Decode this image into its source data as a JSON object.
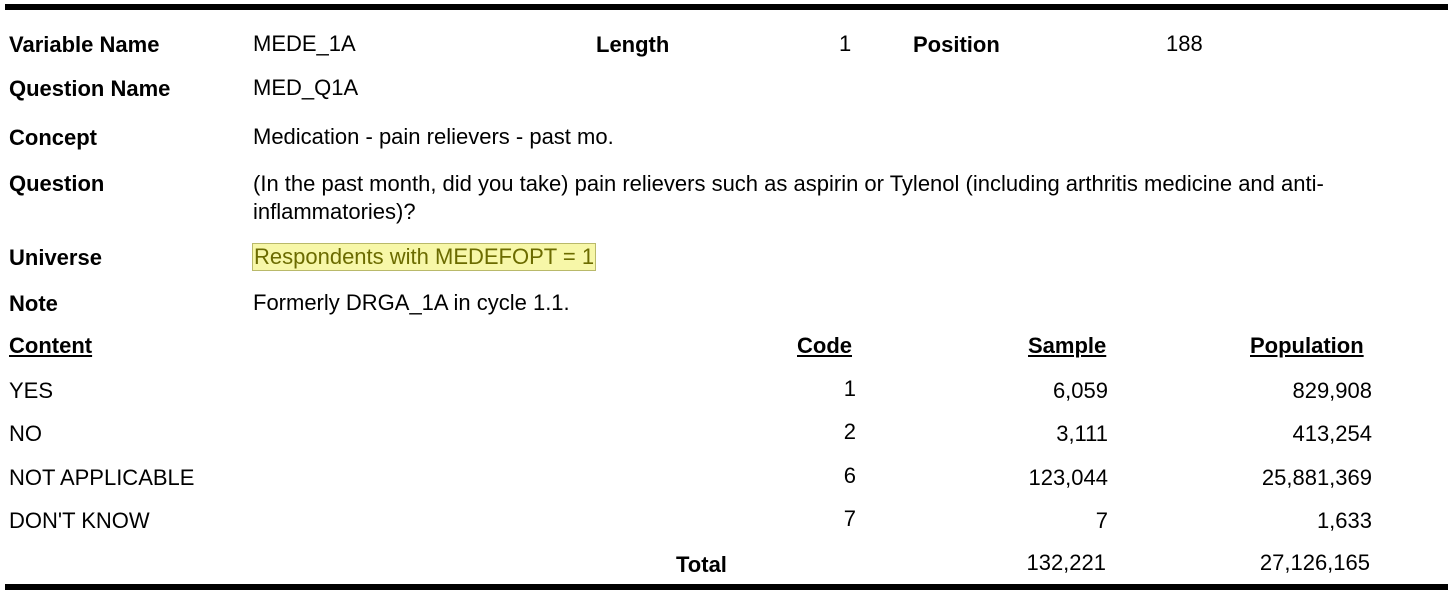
{
  "header": {
    "variable_name_label": "Variable  Name",
    "variable_name_value": "MEDE_1A",
    "length_label": "Length",
    "length_value": "1",
    "position_label": "Position",
    "position_value": "188"
  },
  "fields": {
    "question_name_label": "Question Name",
    "question_name_value": "MED_Q1A",
    "concept_label": "Concept",
    "concept_value": "Medication - pain relievers - past mo.",
    "question_label": "Question",
    "question_value": "(In the past month, did you take) pain relievers such as aspirin or Tylenol (including arthritis medicine and anti-inflammatories)?",
    "universe_label": "Universe",
    "universe_value": "Respondents with MEDEFOPT = 1",
    "note_label": "Note",
    "note_value": "Formerly DRGA_1A in cycle 1.1."
  },
  "table": {
    "headers": {
      "content": "Content",
      "code": "Code",
      "sample": "Sample",
      "population": "Population"
    },
    "rows": [
      {
        "content": "YES",
        "code": "1",
        "sample": "6,059",
        "population": "829,908"
      },
      {
        "content": "NO",
        "code": "2",
        "sample": "3,111",
        "population": "413,254"
      },
      {
        "content": "NOT APPLICABLE",
        "code": "6",
        "sample": "123,044",
        "population": "25,881,369"
      },
      {
        "content": "DON'T KNOW",
        "code": "7",
        "sample": "7",
        "population": "1,633"
      }
    ],
    "total": {
      "label": "Total",
      "sample": "132,221",
      "population": "27,126,165"
    }
  },
  "colors": {
    "highlight_bg": "#f7f7a8",
    "highlight_text": "#6b6b00"
  }
}
